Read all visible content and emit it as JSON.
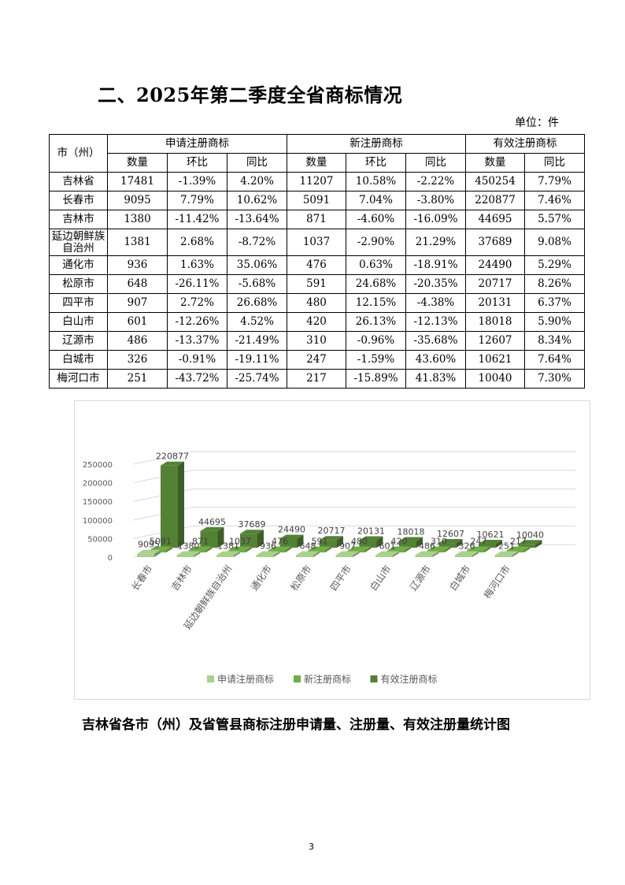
{
  "section_title": "二、2025年第二季度全省商标情况",
  "unit_label": "单位：件",
  "table": {
    "corner_header": "市（州）",
    "groups": [
      "申请注册商标",
      "新注册商标",
      "有效注册商标"
    ],
    "subheaders": [
      "数量",
      "环比",
      "同比",
      "数量",
      "环比",
      "同比",
      "数量",
      "同比"
    ],
    "rows": [
      [
        "吉林省",
        "17481",
        "-1.39%",
        "4.20%",
        "11207",
        "10.58%",
        "-2.22%",
        "450254",
        "7.79%"
      ],
      [
        "长春市",
        "9095",
        "7.79%",
        "10.62%",
        "5091",
        "7.04%",
        "-3.80%",
        "220877",
        "7.46%"
      ],
      [
        "吉林市",
        "1380",
        "-11.42%",
        "-13.64%",
        "871",
        "-4.60%",
        "-16.09%",
        "44695",
        "5.57%"
      ],
      [
        "延边朝鲜族自治州",
        "1381",
        "2.68%",
        "-8.72%",
        "1037",
        "-2.90%",
        "21.29%",
        "37689",
        "9.08%"
      ],
      [
        "通化市",
        "936",
        "1.63%",
        "35.06%",
        "476",
        "0.63%",
        "-18.91%",
        "24490",
        "5.29%"
      ],
      [
        "松原市",
        "648",
        "-26.11%",
        "-5.68%",
        "591",
        "24.68%",
        "-20.35%",
        "20717",
        "8.26%"
      ],
      [
        "四平市",
        "907",
        "2.72%",
        "26.68%",
        "480",
        "12.15%",
        "-4.38%",
        "20131",
        "6.37%"
      ],
      [
        "白山市",
        "601",
        "-12.26%",
        "4.52%",
        "420",
        "26.13%",
        "-12.13%",
        "18018",
        "5.90%"
      ],
      [
        "辽源市",
        "486",
        "-13.37%",
        "-21.49%",
        "310",
        "-0.96%",
        "-35.68%",
        "12607",
        "8.34%"
      ],
      [
        "白城市",
        "326",
        "-0.91%",
        "-19.11%",
        "247",
        "-1.59%",
        "43.60%",
        "10621",
        "7.64%"
      ],
      [
        "梅河口市",
        "251",
        "-43.72%",
        "-25.74%",
        "217",
        "-15.89%",
        "41.83%",
        "10040",
        "7.30%"
      ]
    ]
  },
  "chart_data": {
    "type": "bar",
    "categories": [
      "长春市",
      "吉林市",
      "延边朝鲜族自治州",
      "通化市",
      "松原市",
      "四平市",
      "白山市",
      "辽源市",
      "白城市",
      "梅河口市"
    ],
    "series": [
      {
        "name": "申请注册商标",
        "values": [
          9095,
          1380,
          1381,
          936,
          648,
          907,
          601,
          486,
          326,
          251
        ],
        "color": "#a9d18e"
      },
      {
        "name": "新注册商标",
        "values": [
          5091,
          871,
          1037,
          476,
          591,
          480,
          420,
          310,
          247,
          217
        ],
        "color": "#70ad47"
      },
      {
        "name": "有效注册商标",
        "values": [
          220877,
          44695,
          37689,
          24490,
          20717,
          20131,
          18018,
          12607,
          10621,
          10040
        ],
        "color": "#548235"
      }
    ],
    "yticks": [
      "0",
      "50000",
      "100000",
      "150000",
      "200000",
      "250000"
    ],
    "ylim": [
      0,
      250000
    ],
    "grid": true,
    "legend": "bottom",
    "data_labels": true
  },
  "caption": "吉林省各市（州）及省管县商标注册申请量、注册量、有效注册量统计图",
  "page_number": "3"
}
